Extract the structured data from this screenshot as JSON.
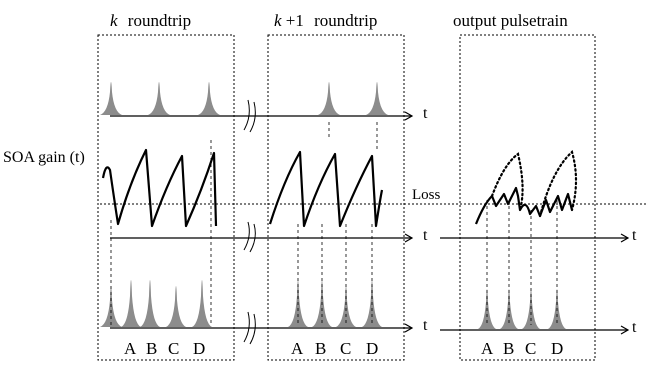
{
  "headers": {
    "k_roundtrip_k": "k",
    "k_roundtrip_rest": "roundtrip",
    "k1_roundtrip_k": "k",
    "k1_roundtrip_plus": "+1",
    "k1_roundtrip_rest": "roundtrip",
    "output": "output pulsetrain"
  },
  "labels": {
    "soa_gain": "SOA gain (t)",
    "loss": "Loss",
    "time_axis": "t"
  },
  "pulse_labels": [
    "A",
    "B",
    "C",
    "D"
  ],
  "colors": {
    "pulse_fill": "#8c8c8c",
    "line": "#000000"
  }
}
